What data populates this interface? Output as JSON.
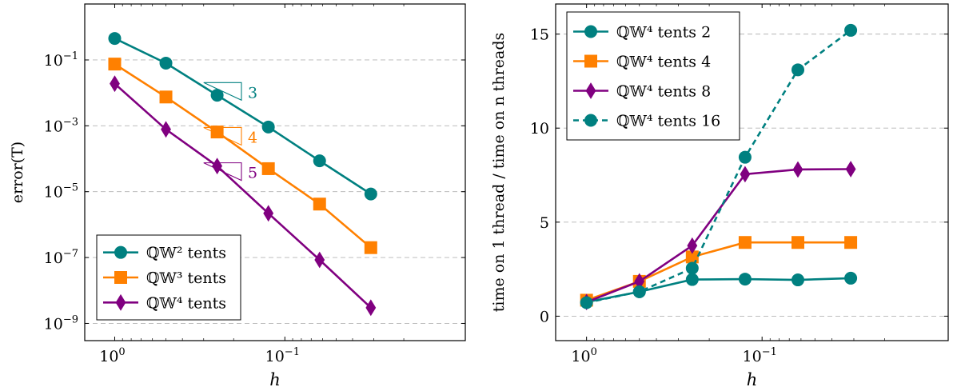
{
  "colors": {
    "teal": "#008080",
    "orange": "#ff8000",
    "purple": "#800080",
    "grid": "#b4b4b4"
  },
  "chart_data": [
    {
      "type": "line",
      "xlabel": "h",
      "ylabel": "error(T)",
      "xscale": "log",
      "xreversed": true,
      "yscale": "log",
      "xlim": [
        1.5,
        0.0087
      ],
      "ylim": [
        3e-10,
        5
      ],
      "xticks": [
        {
          "value": 1,
          "label": "10",
          "exp": "0"
        },
        {
          "value": 0.1,
          "label": "10",
          "exp": "−1"
        }
      ],
      "yticks": [
        {
          "value": 0.1,
          "label": "10",
          "exp": "−1"
        },
        {
          "value": 0.001,
          "label": "10",
          "exp": "−3"
        },
        {
          "value": 1e-05,
          "label": "10",
          "exp": "−5"
        },
        {
          "value": 1e-07,
          "label": "10",
          "exp": "−7"
        },
        {
          "value": 1e-09,
          "label": "10",
          "exp": "−9"
        }
      ],
      "grid": "horizontal-dashed",
      "legend_position": "bottom-left",
      "series": [
        {
          "name": "ℚ𝕎² tents",
          "color": "teal",
          "marker": "circle",
          "x": [
            1,
            0.5,
            0.25,
            0.125,
            0.0625,
            0.03125
          ],
          "y": [
            0.45,
            0.08,
            0.0085,
            0.00092,
            8.65e-05,
            8.5e-06
          ]
        },
        {
          "name": "ℚ𝕎³ tents",
          "color": "orange",
          "marker": "square",
          "x": [
            1,
            0.5,
            0.25,
            0.125,
            0.0625,
            0.03125
          ],
          "y": [
            0.075,
            0.0075,
            0.00065,
            5e-05,
            4.2e-06,
            2e-07
          ]
        },
        {
          "name": "ℚ𝕎⁴ tents",
          "color": "purple",
          "marker": "diamond",
          "x": [
            1,
            0.5,
            0.25,
            0.125,
            0.0625,
            0.03125
          ],
          "y": [
            0.019,
            0.00078,
            6e-05,
            2.2e-06,
            8.5e-08,
            3e-09
          ]
        }
      ],
      "slope_annotations": [
        {
          "label": "3",
          "color": "teal",
          "h_from": 0.3,
          "h_to": 0.18,
          "y_at": 0.006
        },
        {
          "label": "4",
          "color": "orange",
          "h_from": 0.3,
          "h_to": 0.18,
          "y_at": 0.00026
        },
        {
          "label": "5",
          "color": "purple",
          "h_from": 0.3,
          "h_to": 0.18,
          "y_at": 2.2e-05
        }
      ]
    },
    {
      "type": "line",
      "xlabel": "h",
      "ylabel": "time on 1 thread / time on n threads",
      "xscale": "log",
      "xreversed": true,
      "yscale": "linear",
      "xlim": [
        1.5,
        0.0087
      ],
      "ylim": [
        -1.3,
        16.6
      ],
      "xticks": [
        {
          "value": 1,
          "label": "10",
          "exp": "0"
        },
        {
          "value": 0.1,
          "label": "10",
          "exp": "−1"
        }
      ],
      "yticks": [
        {
          "value": 0,
          "label": "0"
        },
        {
          "value": 5,
          "label": "5"
        },
        {
          "value": 10,
          "label": "10"
        },
        {
          "value": 15,
          "label": "15"
        }
      ],
      "grid": "horizontal-dashed",
      "legend_position": "top-left",
      "series": [
        {
          "name": "ℚ𝕎⁴ tents 2",
          "color": "teal",
          "marker": "circle",
          "dashed": false,
          "x": [
            1,
            0.5,
            0.25,
            0.125,
            0.0625,
            0.03125
          ],
          "y": [
            0.75,
            1.3,
            1.95,
            1.97,
            1.93,
            2.02
          ]
        },
        {
          "name": "ℚ𝕎⁴ tents 4",
          "color": "orange",
          "marker": "square",
          "dashed": false,
          "x": [
            1,
            0.5,
            0.25,
            0.125,
            0.0625,
            0.03125
          ],
          "y": [
            0.85,
            1.85,
            3.15,
            3.92,
            3.92,
            3.92
          ]
        },
        {
          "name": "ℚ𝕎⁴ tents 8",
          "color": "purple",
          "marker": "diamond",
          "dashed": false,
          "x": [
            1,
            0.5,
            0.25,
            0.125,
            0.0625,
            0.03125
          ],
          "y": [
            0.75,
            1.85,
            3.75,
            7.55,
            7.8,
            7.82
          ]
        },
        {
          "name": "ℚ𝕎⁴ tents 16",
          "color": "teal",
          "marker": "circle",
          "dashed": true,
          "x": [
            1,
            0.5,
            0.25,
            0.125,
            0.0625,
            0.03125
          ],
          "y": [
            0.72,
            1.3,
            2.55,
            8.45,
            13.1,
            15.2
          ]
        }
      ]
    }
  ]
}
